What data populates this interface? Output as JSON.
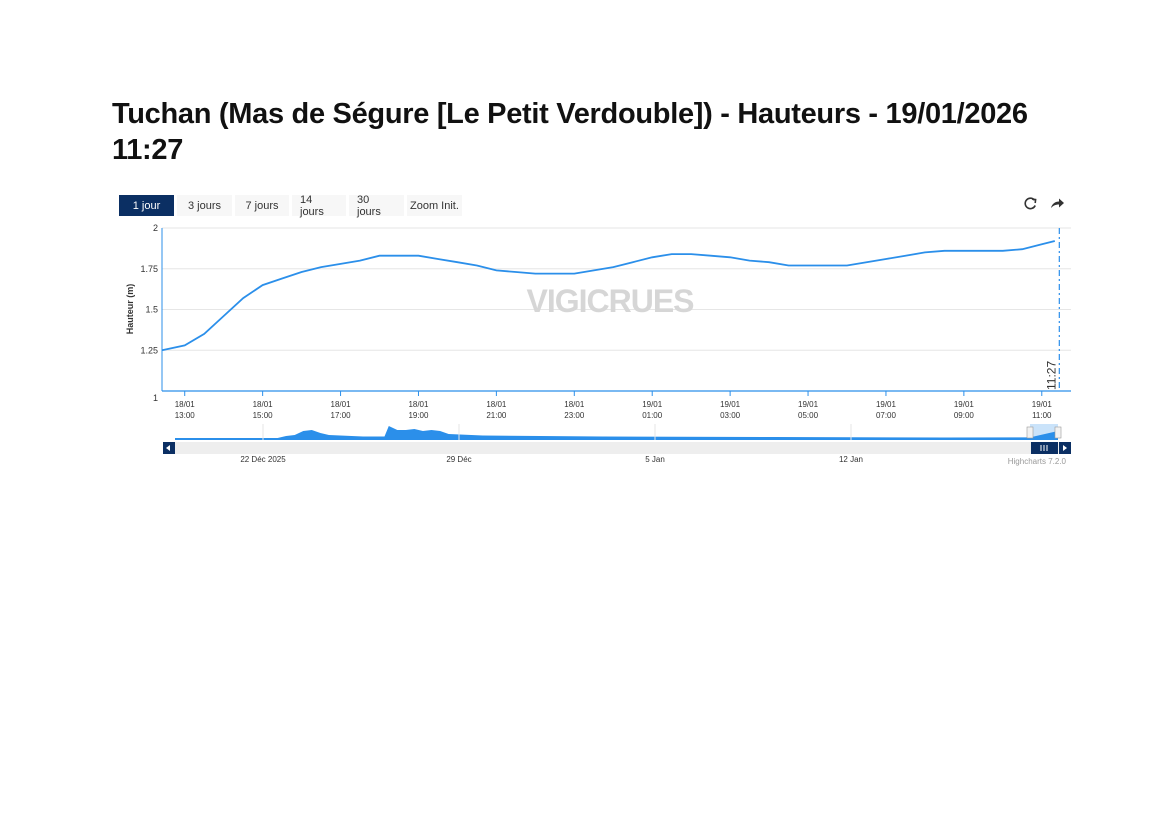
{
  "page": {
    "title": "Tuchan (Mas de Ségure [Le Petit Verdouble]) - Hauteurs - 19/01/2026 11:27"
  },
  "range_selector": {
    "buttons": [
      "1 jour",
      "3 jours",
      "7 jours",
      "14 jours",
      "30 jours",
      "Zoom Init."
    ],
    "selected": "1 jour"
  },
  "toolbar": {
    "refresh_icon": "refresh-icon",
    "share_icon": "share-arrow-icon"
  },
  "watermark": "VIGICRUES",
  "credits": "Highcharts 7.2.0",
  "colors": {
    "series": "#2b8fea",
    "navigator_fill": "#2b8fea",
    "active_button": "#0b2f63",
    "now_line": "#2b8fea",
    "grid": "#e6e6e6"
  },
  "chart_data": {
    "type": "line",
    "title": "",
    "xlabel": "",
    "ylabel": "Hauteur (m)",
    "ylim": [
      1,
      2
    ],
    "yticks": [
      "1",
      "1.25",
      "1.5",
      "1.75",
      "2"
    ],
    "grid": true,
    "legend": "none",
    "x_range": [
      "18/01 12:25",
      "19/01 11:45"
    ],
    "xticks": [
      [
        "18/01",
        "13:00"
      ],
      [
        "18/01",
        "15:00"
      ],
      [
        "18/01",
        "17:00"
      ],
      [
        "18/01",
        "19:00"
      ],
      [
        "18/01",
        "21:00"
      ],
      [
        "18/01",
        "23:00"
      ],
      [
        "19/01",
        "01:00"
      ],
      [
        "19/01",
        "03:00"
      ],
      [
        "19/01",
        "05:00"
      ],
      [
        "19/01",
        "07:00"
      ],
      [
        "19/01",
        "09:00"
      ],
      [
        "19/01",
        "11:00"
      ]
    ],
    "now_marker": {
      "time": "19/01 11:27",
      "label": "11:27"
    },
    "series": [
      {
        "x": [
          "18/01 12:25",
          "18/01 13:00",
          "18/01 13:30",
          "18/01 14:00",
          "18/01 14:30",
          "18/01 15:00",
          "18/01 15:30",
          "18/01 16:00",
          "18/01 16:30",
          "18/01 17:00",
          "18/01 17:30",
          "18/01 18:00",
          "18/01 18:30",
          "18/01 19:00",
          "18/01 19:30",
          "18/01 20:00",
          "18/01 20:30",
          "18/01 21:00",
          "18/01 21:30",
          "18/01 22:00",
          "18/01 22:30",
          "18/01 23:00",
          "18/01 23:30",
          "19/01 00:00",
          "19/01 00:30",
          "19/01 01:00",
          "19/01 01:30",
          "19/01 02:00",
          "19/01 02:30",
          "19/01 03:00",
          "19/01 03:30",
          "19/01 04:00",
          "19/01 04:30",
          "19/01 05:00",
          "19/01 05:30",
          "19/01 06:00",
          "19/01 06:30",
          "19/01 07:00",
          "19/01 07:30",
          "19/01 08:00",
          "19/01 08:30",
          "19/01 09:00",
          "19/01 09:30",
          "19/01 10:00",
          "19/01 10:30",
          "19/01 11:00",
          "19/01 11:20"
        ],
        "values": [
          1.25,
          1.28,
          1.35,
          1.46,
          1.57,
          1.65,
          1.69,
          1.73,
          1.76,
          1.78,
          1.8,
          1.83,
          1.83,
          1.83,
          1.81,
          1.79,
          1.77,
          1.74,
          1.73,
          1.72,
          1.72,
          1.72,
          1.74,
          1.76,
          1.79,
          1.82,
          1.84,
          1.84,
          1.83,
          1.82,
          1.8,
          1.79,
          1.77,
          1.77,
          1.77,
          1.77,
          1.79,
          1.81,
          1.83,
          1.85,
          1.86,
          1.86,
          1.86,
          1.86,
          1.87,
          1.9,
          1.92
        ]
      }
    ],
    "navigator": {
      "labels": [
        "22 Déc 2025",
        "29 Déc",
        "5 Jan",
        "12 Jan"
      ]
    }
  }
}
